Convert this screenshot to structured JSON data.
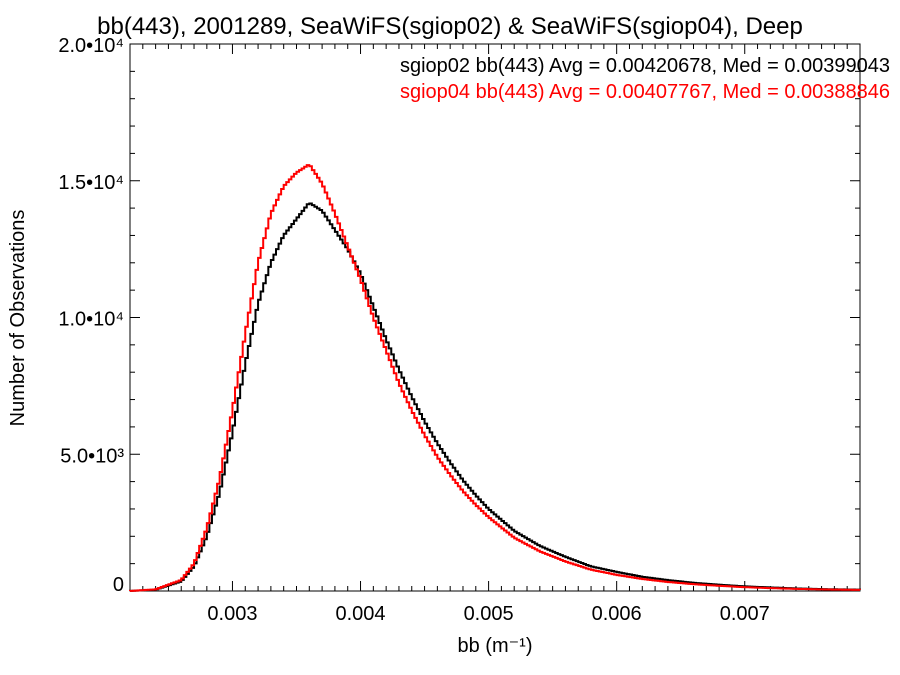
{
  "chart_data": {
    "type": "line",
    "title": "bb(443), 2001289, SeaWiFS(sgiop02) & SeaWiFS(sgiop04), Deep",
    "xlabel": "bb (m⁻¹)",
    "ylabel": "Number of Observations",
    "xlim": [
      0.0022,
      0.0079
    ],
    "ylim": [
      0,
      20000
    ],
    "x_ticks": [
      {
        "value": 0.003,
        "label": "0.003"
      },
      {
        "value": 0.004,
        "label": "0.004"
      },
      {
        "value": 0.005,
        "label": "0.005"
      },
      {
        "value": 0.006,
        "label": "0.006"
      },
      {
        "value": 0.007,
        "label": "0.007"
      }
    ],
    "y_ticks": [
      {
        "value": 0,
        "label": "0"
      },
      {
        "value": 5000,
        "label": "5.0•10³"
      },
      {
        "value": 10000,
        "label": "1.0•10⁴"
      },
      {
        "value": 15000,
        "label": "1.5•10⁴"
      },
      {
        "value": 20000,
        "label": "2.0•10⁴"
      }
    ],
    "legend_position": "top-right",
    "series": [
      {
        "name": "sgiop02 bb(443) Avg = 0.00420678, Med = 0.00399043",
        "color": "#000000",
        "points": [
          [
            0.0022,
            0
          ],
          [
            0.0024,
            50
          ],
          [
            0.0026,
            350
          ],
          [
            0.0027,
            900
          ],
          [
            0.0028,
            2000
          ],
          [
            0.0029,
            3600
          ],
          [
            0.003,
            5800
          ],
          [
            0.0031,
            8300
          ],
          [
            0.0032,
            10500
          ],
          [
            0.0033,
            12000
          ],
          [
            0.0034,
            13000
          ],
          [
            0.0035,
            13600
          ],
          [
            0.0036,
            14200
          ],
          [
            0.0037,
            13900
          ],
          [
            0.0038,
            13200
          ],
          [
            0.0039,
            12500
          ],
          [
            0.004,
            11600
          ],
          [
            0.0041,
            10400
          ],
          [
            0.0042,
            9200
          ],
          [
            0.0043,
            8100
          ],
          [
            0.0044,
            7100
          ],
          [
            0.0045,
            6200
          ],
          [
            0.0046,
            5400
          ],
          [
            0.0047,
            4700
          ],
          [
            0.0048,
            4050
          ],
          [
            0.0049,
            3500
          ],
          [
            0.005,
            3000
          ],
          [
            0.0052,
            2200
          ],
          [
            0.0054,
            1650
          ],
          [
            0.0056,
            1250
          ],
          [
            0.0058,
            900
          ],
          [
            0.006,
            700
          ],
          [
            0.0062,
            520
          ],
          [
            0.0064,
            400
          ],
          [
            0.0066,
            300
          ],
          [
            0.0068,
            230
          ],
          [
            0.007,
            170
          ],
          [
            0.0072,
            130
          ],
          [
            0.0074,
            95
          ],
          [
            0.0076,
            70
          ],
          [
            0.0078,
            55
          ],
          [
            0.0079,
            50
          ]
        ]
      },
      {
        "name": "sgiop04 bb(443) Avg = 0.00407767, Med = 0.00388846",
        "color": "#ff0000",
        "points": [
          [
            0.0022,
            0
          ],
          [
            0.0024,
            60
          ],
          [
            0.0026,
            400
          ],
          [
            0.0027,
            1000
          ],
          [
            0.0028,
            2300
          ],
          [
            0.0029,
            4100
          ],
          [
            0.003,
            6600
          ],
          [
            0.0031,
            9400
          ],
          [
            0.0032,
            12000
          ],
          [
            0.0033,
            13800
          ],
          [
            0.0034,
            14800
          ],
          [
            0.0035,
            15300
          ],
          [
            0.0036,
            15600
          ],
          [
            0.0037,
            14900
          ],
          [
            0.0038,
            13800
          ],
          [
            0.0039,
            12600
          ],
          [
            0.004,
            11400
          ],
          [
            0.0041,
            10000
          ],
          [
            0.0042,
            8800
          ],
          [
            0.0043,
            7600
          ],
          [
            0.0044,
            6600
          ],
          [
            0.0045,
            5700
          ],
          [
            0.0046,
            4900
          ],
          [
            0.0047,
            4250
          ],
          [
            0.0048,
            3650
          ],
          [
            0.0049,
            3150
          ],
          [
            0.005,
            2700
          ],
          [
            0.0052,
            1950
          ],
          [
            0.0054,
            1450
          ],
          [
            0.0056,
            1080
          ],
          [
            0.0058,
            780
          ],
          [
            0.006,
            590
          ],
          [
            0.0062,
            440
          ],
          [
            0.0064,
            330
          ],
          [
            0.0066,
            250
          ],
          [
            0.0068,
            190
          ],
          [
            0.007,
            140
          ],
          [
            0.0072,
            105
          ],
          [
            0.0074,
            78
          ],
          [
            0.0076,
            58
          ],
          [
            0.0078,
            45
          ],
          [
            0.0079,
            40
          ]
        ]
      }
    ]
  }
}
